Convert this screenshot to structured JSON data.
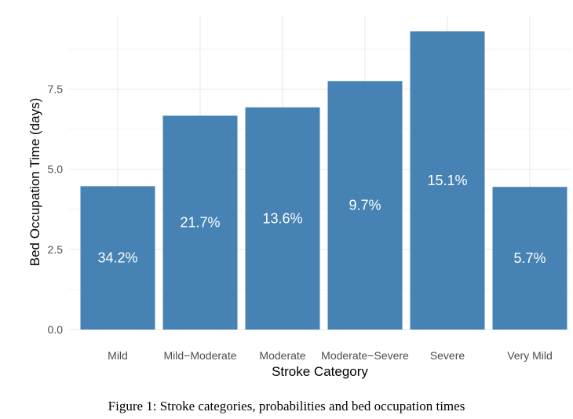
{
  "chart_data": {
    "type": "bar",
    "categories": [
      "Mild",
      "Mild−Moderate",
      "Moderate",
      "Moderate−Severe",
      "Severe",
      "Very Mild"
    ],
    "values": [
      4.47,
      6.67,
      6.93,
      7.75,
      9.3,
      4.45
    ],
    "bar_labels": [
      "34.2%",
      "21.7%",
      "13.6%",
      "9.7%",
      "15.1%",
      "5.7%"
    ],
    "xlabel": "Stroke Category",
    "ylabel": "Bed Occupation Time (days)",
    "ylim": [
      0,
      9.3
    ],
    "yticks": [
      0,
      2.5,
      5,
      7.5
    ],
    "ytick_labels": [
      "0.0",
      "2.5",
      "5.0",
      "7.5"
    ],
    "grid": true,
    "legend": "none",
    "bar_color": "#4682B4",
    "grid_color": "#EBEBEB",
    "label_color": "#FFFFFF"
  },
  "caption": "Figure 1: Stroke categories, probabilities and bed occupation times"
}
